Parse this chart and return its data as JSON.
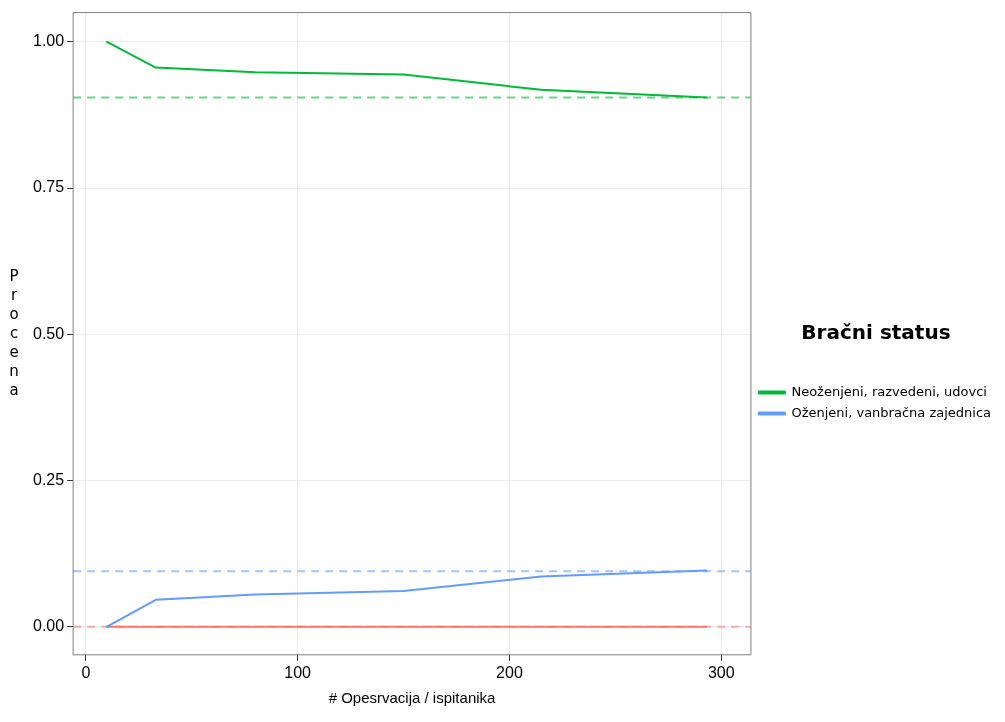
{
  "chart_data": {
    "type": "line",
    "xlabel": "# Opesrvacija / ispitanika",
    "ylabel": "Procena",
    "legend_title": "Bračni status",
    "x": [
      10,
      33,
      80,
      150,
      215,
      293
    ],
    "series": [
      {
        "name": "Neoženjeni, razvedeni, udovci",
        "color": "#00ba38",
        "values": [
          1.0,
          0.956,
          0.948,
          0.944,
          0.918,
          0.905
        ]
      },
      {
        "name": "Oženjeni, vanbračna zajednica",
        "color": "#619cff",
        "values": [
          0.0,
          0.046,
          0.055,
          0.061,
          0.086,
          0.096
        ]
      },
      {
        "color": "#f8766d",
        "values": [
          0,
          0,
          0,
          0,
          0,
          0
        ]
      }
    ],
    "ref_lines": [
      {
        "axis": "y",
        "value": 0.905,
        "color": "#00ba38",
        "line_style": "dashed"
      },
      {
        "axis": "y",
        "value": 0.095,
        "color": "#619cff",
        "line_style": "dashed"
      },
      {
        "axis": "y",
        "value": 0,
        "color": "#f8766d",
        "line_style": "dashed"
      }
    ],
    "xlim": [
      -6,
      314
    ],
    "xticks": [
      0,
      100,
      200,
      300
    ],
    "ylim": [
      -0.048,
      1.05
    ],
    "yticks": [
      {
        "value": 0,
        "label": "0.00"
      },
      {
        "value": 0.25,
        "label": "0.25"
      },
      {
        "value": 0.5,
        "label": "0.50"
      },
      {
        "value": 0.75,
        "label": "0.75"
      },
      {
        "value": 1,
        "label": "1.00"
      }
    ],
    "grid": true,
    "legend": "right",
    "marker": "none",
    "line_style": "solid"
  }
}
